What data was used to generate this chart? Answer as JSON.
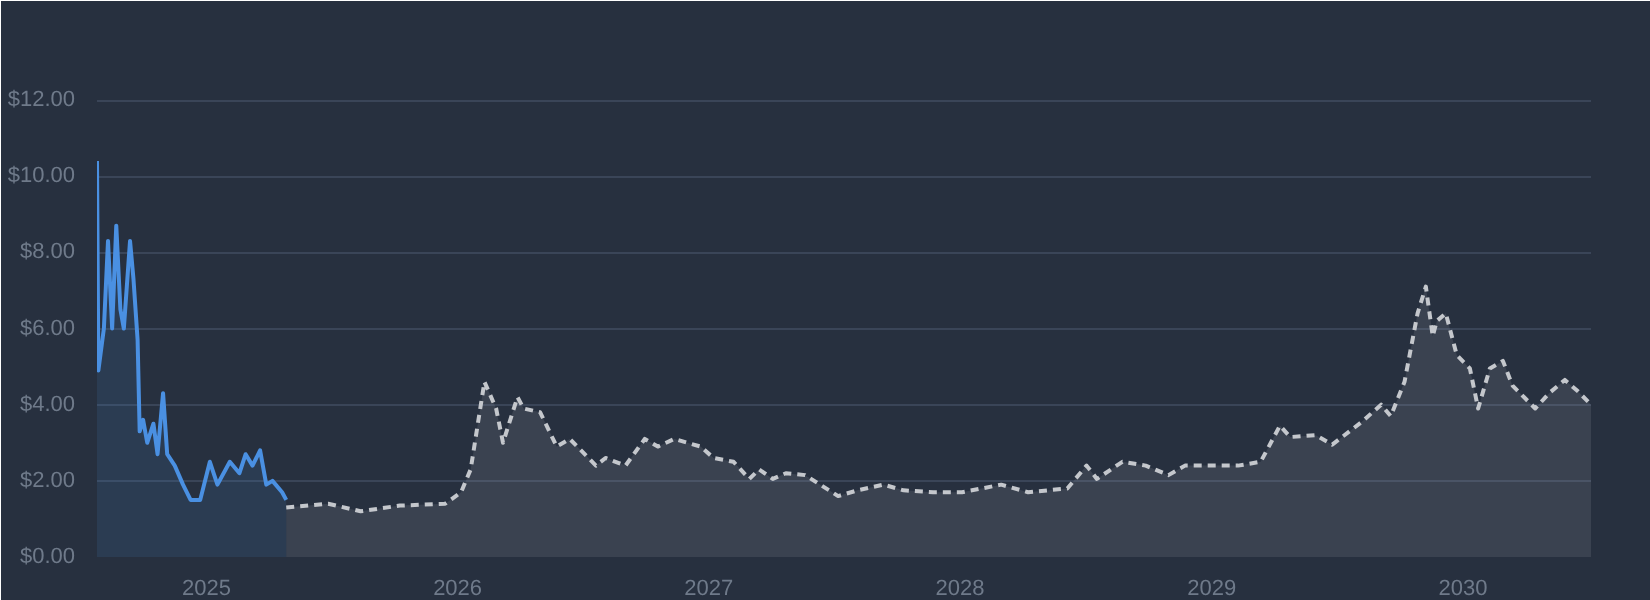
{
  "chart_data": {
    "type": "area",
    "xlim": [
      "2024-07-26",
      "2030-07-06"
    ],
    "xticks": [
      {
        "value": "2025-01-01",
        "label": "2025"
      },
      {
        "value": "2026-01-01",
        "label": "2026"
      },
      {
        "value": "2027-01-01",
        "label": "2027"
      },
      {
        "value": "2028-01-01",
        "label": "2028"
      },
      {
        "value": "2029-01-01",
        "label": "2029"
      },
      {
        "value": "2030-01-01",
        "label": "2030"
      }
    ],
    "ylim": [
      0,
      12.5
    ],
    "yticks": [
      {
        "value": 0,
        "label": "$0.00"
      },
      {
        "value": 2,
        "label": "$2.00"
      },
      {
        "value": 4,
        "label": "$4.00"
      },
      {
        "value": 6,
        "label": "$6.00"
      },
      {
        "value": 8,
        "label": "$8.00"
      },
      {
        "value": 10,
        "label": "$10.00"
      },
      {
        "value": 12,
        "label": "$12.00"
      }
    ],
    "grid": "y",
    "series": [
      {
        "color": "#4a90e2",
        "line_style": "solid",
        "x": [
          "2024-07-26",
          "2024-07-28",
          "2024-08-05",
          "2024-08-11",
          "2024-08-17",
          "2024-08-23",
          "2024-08-29",
          "2024-09-03",
          "2024-09-12",
          "2024-09-17",
          "2024-09-23",
          "2024-09-26",
          "2024-10-01",
          "2024-10-07",
          "2024-10-16",
          "2024-10-22",
          "2024-10-30",
          "2024-11-05",
          "2024-11-16",
          "2024-11-28",
          "2024-12-09",
          "2024-12-23",
          "2025-01-06",
          "2025-01-17",
          "2025-02-04",
          "2025-02-18",
          "2025-02-27",
          "2025-03-09",
          "2025-03-20",
          "2025-03-29",
          "2025-04-07",
          "2025-04-21",
          "2025-04-27"
        ],
        "values": [
          10.4,
          4.9,
          6.0,
          8.3,
          6.0,
          8.7,
          6.5,
          6.0,
          8.3,
          7.3,
          5.7,
          3.3,
          3.6,
          3.0,
          3.5,
          2.7,
          4.3,
          2.7,
          2.4,
          1.9,
          1.5,
          1.5,
          2.5,
          1.9,
          2.5,
          2.2,
          2.7,
          2.4,
          2.8,
          1.9,
          2.0,
          1.7,
          1.5
        ]
      },
      {
        "color": "#c4c7cc",
        "line_style": "dashed",
        "x": [
          "2025-04-27",
          "2025-06-27",
          "2025-08-13",
          "2025-10-09",
          "2025-12-14",
          "2026-01-06",
          "2026-01-20",
          "2026-02-09",
          "2026-02-26",
          "2026-03-08",
          "2026-03-29",
          "2026-04-07",
          "2026-05-01",
          "2026-05-25",
          "2026-06-13",
          "2026-07-21",
          "2026-08-04",
          "2026-09-02",
          "2026-09-30",
          "2026-10-19",
          "2026-11-12",
          "2026-12-20",
          "2027-01-08",
          "2027-02-06",
          "2027-03-01",
          "2027-03-15",
          "2027-04-04",
          "2027-04-23",
          "2027-05-21",
          "2027-07-08",
          "2027-08-05",
          "2027-09-12",
          "2027-10-11",
          "2027-11-23",
          "2028-01-04",
          "2028-03-01",
          "2028-04-09",
          "2028-06-05",
          "2028-07-03",
          "2028-07-18",
          "2028-08-24",
          "2028-09-27",
          "2028-10-30",
          "2028-11-23",
          "2029-02-08",
          "2029-03-13",
          "2029-04-10",
          "2029-04-25",
          "2029-06-01",
          "2029-06-25",
          "2029-08-07",
          "2029-09-04",
          "2029-09-18",
          "2029-10-08",
          "2029-10-27",
          "2029-11-08",
          "2029-11-18",
          "2029-11-24",
          "2029-12-07",
          "2029-12-23",
          "2030-01-11",
          "2030-01-23",
          "2030-02-09",
          "2030-02-28",
          "2030-03-14",
          "2030-04-16",
          "2030-05-06",
          "2030-05-29",
          "2030-06-17",
          "2030-07-06"
        ],
        "values": [
          1.3,
          1.4,
          1.2,
          1.35,
          1.4,
          1.7,
          2.3,
          4.6,
          3.9,
          3.0,
          4.2,
          3.9,
          3.8,
          2.9,
          3.1,
          2.4,
          2.6,
          2.4,
          3.1,
          2.9,
          3.1,
          2.9,
          2.6,
          2.5,
          2.05,
          2.3,
          2.05,
          2.2,
          2.15,
          1.6,
          1.75,
          1.9,
          1.75,
          1.7,
          1.7,
          1.9,
          1.7,
          1.8,
          2.4,
          2.05,
          2.5,
          2.4,
          2.15,
          2.4,
          2.4,
          2.5,
          3.45,
          3.15,
          3.2,
          2.95,
          3.55,
          4.0,
          3.7,
          4.6,
          6.4,
          7.1,
          5.8,
          6.2,
          6.4,
          5.3,
          4.95,
          3.9,
          4.95,
          5.15,
          4.5,
          3.9,
          4.3,
          4.65,
          4.35,
          4.0
        ]
      }
    ]
  }
}
